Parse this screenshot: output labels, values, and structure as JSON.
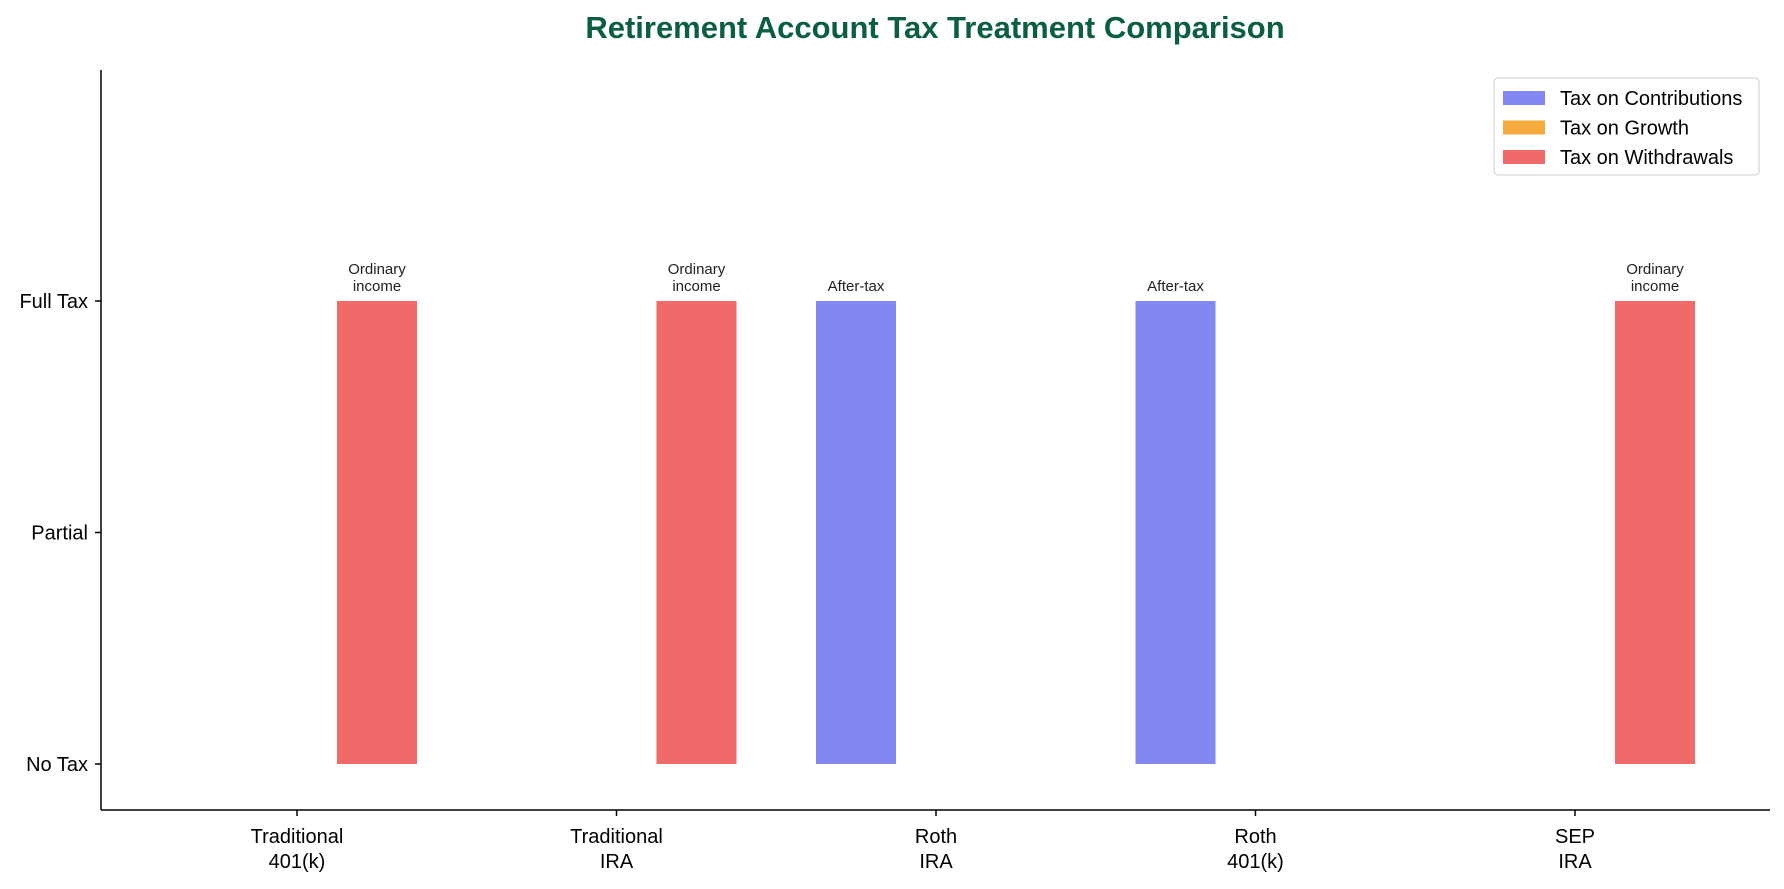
{
  "chart_data": {
    "type": "bar",
    "title": "Retirement Account Tax Treatment Comparison",
    "xlabel": "",
    "ylabel": "",
    "categories": [
      [
        "Traditional",
        "401(k)"
      ],
      [
        "Traditional",
        "IRA"
      ],
      [
        "Roth",
        "IRA"
      ],
      [
        "Roth",
        "401(k)"
      ],
      [
        "SEP",
        "IRA"
      ]
    ],
    "y_ticks": [
      {
        "value": 0,
        "label": "No Tax"
      },
      {
        "value": 1,
        "label": "Partial"
      },
      {
        "value": 2,
        "label": "Full Tax"
      }
    ],
    "ylim": [
      -0.2,
      3.0
    ],
    "grid": false,
    "legend_position": "top-right",
    "series": [
      {
        "name": "Tax on Contributions",
        "color": "#8387f2",
        "values": [
          0,
          0,
          2,
          2,
          0
        ],
        "labels": [
          "",
          "",
          [
            "After-tax"
          ],
          [
            "After-tax"
          ],
          ""
        ]
      },
      {
        "name": "Tax on Growth",
        "color": "#f4aa3c",
        "values": [
          0,
          0,
          0,
          0,
          0
        ],
        "labels": [
          "",
          "",
          "",
          "",
          ""
        ]
      },
      {
        "name": "Tax on Withdrawals",
        "color": "#f06a6a",
        "values": [
          2,
          2,
          0,
          0,
          2
        ],
        "labels": [
          [
            "Ordinary",
            "income"
          ],
          [
            "Ordinary",
            "income"
          ],
          "",
          "",
          [
            "Ordinary",
            "income"
          ]
        ]
      }
    ],
    "title_color": "#0b5e43"
  }
}
